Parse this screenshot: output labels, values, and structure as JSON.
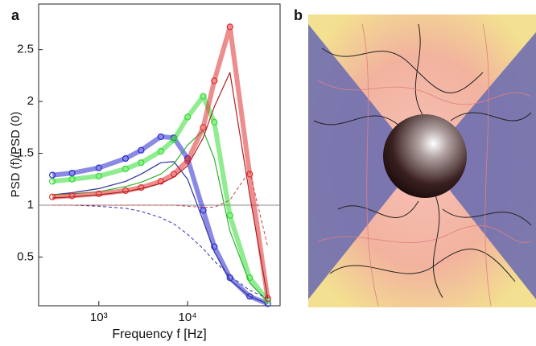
{
  "chart_data": {
    "type": "line",
    "panel": "a",
    "xlabel": "Frequency f [Hz]",
    "ylabel": "PSD (f)/PSD (0)",
    "xscale": "log",
    "xlim": [
      210,
      110000
    ],
    "ylim": [
      0.03,
      2.94
    ],
    "xticks": [
      {
        "value": 1000,
        "label": "10³"
      },
      {
        "value": 10000,
        "label": "10⁴"
      }
    ],
    "yticks": [
      0.5,
      1.0,
      1.5,
      2.0,
      2.5
    ],
    "hline": 1.0,
    "x": [
      300,
      500,
      1000,
      2000,
      3000,
      5000,
      7000,
      10000,
      15000,
      20000,
      30000,
      50000,
      80000
    ],
    "series": [
      {
        "color": "#2a2ad0",
        "style": "circles",
        "values": [
          1.29,
          1.31,
          1.36,
          1.45,
          1.53,
          1.66,
          1.65,
          1.45,
          0.95,
          0.6,
          0.3,
          0.12,
          0.05
        ]
      },
      {
        "color": "#3030a0",
        "style": "solid",
        "values": [
          1.1,
          1.12,
          1.16,
          1.23,
          1.3,
          1.41,
          1.42,
          1.25,
          0.85,
          0.55,
          0.28,
          0.12,
          0.05
        ]
      },
      {
        "color": "#33dd33",
        "style": "circles",
        "values": [
          1.23,
          1.25,
          1.28,
          1.35,
          1.41,
          1.52,
          1.63,
          1.85,
          2.05,
          1.8,
          0.9,
          0.3,
          0.08
        ]
      },
      {
        "color": "#30b030",
        "style": "solid",
        "values": [
          1.1,
          1.11,
          1.13,
          1.18,
          1.22,
          1.3,
          1.4,
          1.58,
          1.72,
          1.45,
          0.75,
          0.25,
          0.07
        ]
      },
      {
        "color": "#e03030",
        "style": "circles",
        "values": [
          1.08,
          1.09,
          1.11,
          1.14,
          1.17,
          1.23,
          1.3,
          1.43,
          1.75,
          2.2,
          2.72,
          1.3,
          0.1
        ]
      },
      {
        "color": "#b02020",
        "style": "solid",
        "values": [
          1.07,
          1.08,
          1.1,
          1.13,
          1.16,
          1.21,
          1.27,
          1.38,
          1.65,
          1.95,
          2.28,
          1.1,
          0.1
        ]
      },
      {
        "color": "#3030b0",
        "style": "dashed",
        "values": [
          1.0,
          1.0,
          0.99,
          0.97,
          0.94,
          0.88,
          0.82,
          0.72,
          0.58,
          0.46,
          0.32,
          0.18,
          0.1
        ]
      },
      {
        "color": "#d04040",
        "style": "dashed",
        "values": [
          1.0,
          1.0,
          1.0,
          1.0,
          1.0,
          1.0,
          1.0,
          0.99,
          0.98,
          0.98,
          1.05,
          1.33,
          0.6
        ]
      }
    ]
  },
  "panel_b": {
    "label": "b"
  }
}
